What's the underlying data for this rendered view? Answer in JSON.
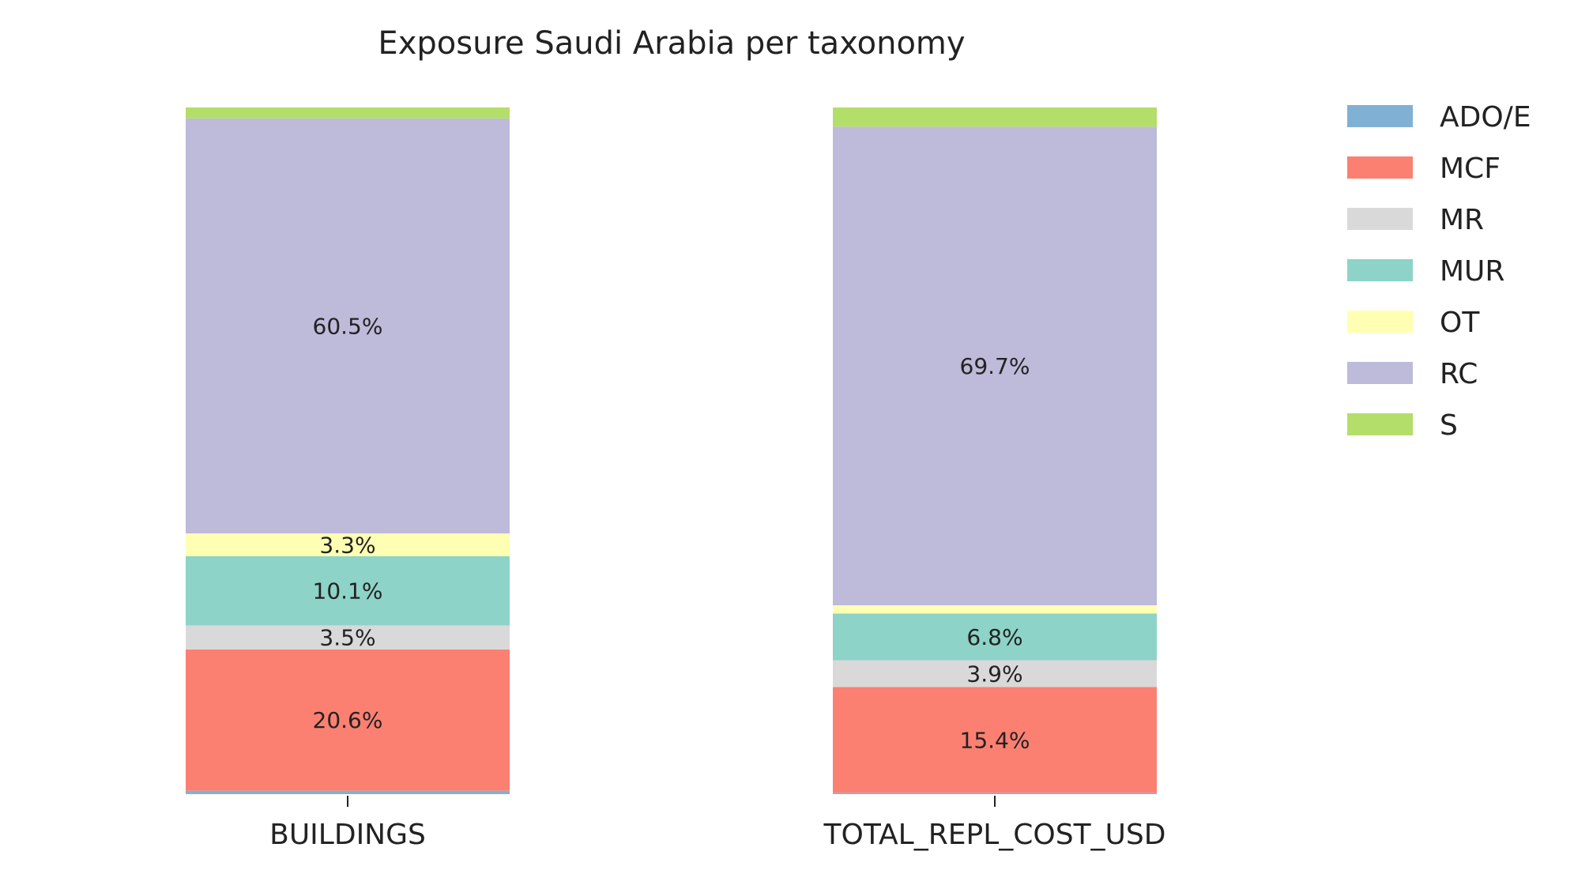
{
  "chart_data": {
    "type": "bar",
    "stacked": true,
    "normalized": true,
    "title": "Exposure Saudi Arabia per taxonomy",
    "xlabel": "",
    "ylabel": "",
    "ylim": [
      0,
      100
    ],
    "grid": false,
    "legend_position": "top-right",
    "categories": [
      "BUILDINGS",
      "TOTAL_REPL_COST_USD"
    ],
    "series": [
      {
        "name": "ADO/E",
        "color": "#80b1d3",
        "values": [
          0.5,
          0.2
        ],
        "labels": [
          "",
          ""
        ]
      },
      {
        "name": "MCF",
        "color": "#fb8072",
        "values": [
          20.6,
          15.4
        ],
        "labels": [
          "20.6%",
          "15.4%"
        ]
      },
      {
        "name": "MR",
        "color": "#d9d9d9",
        "values": [
          3.5,
          3.9
        ],
        "labels": [
          "3.5%",
          "3.9%"
        ]
      },
      {
        "name": "MUR",
        "color": "#8dd3c7",
        "values": [
          10.1,
          6.8
        ],
        "labels": [
          "10.1%",
          "6.8%"
        ]
      },
      {
        "name": "OT",
        "color": "#ffffb3",
        "values": [
          3.3,
          1.2
        ],
        "labels": [
          "3.3%",
          ""
        ]
      },
      {
        "name": "RC",
        "color": "#bebada",
        "values": [
          60.5,
          69.7
        ],
        "labels": [
          "60.5%",
          "69.7%"
        ]
      },
      {
        "name": "S",
        "color": "#b3de69",
        "values": [
          1.6,
          2.8
        ],
        "labels": [
          "",
          ""
        ]
      }
    ]
  }
}
